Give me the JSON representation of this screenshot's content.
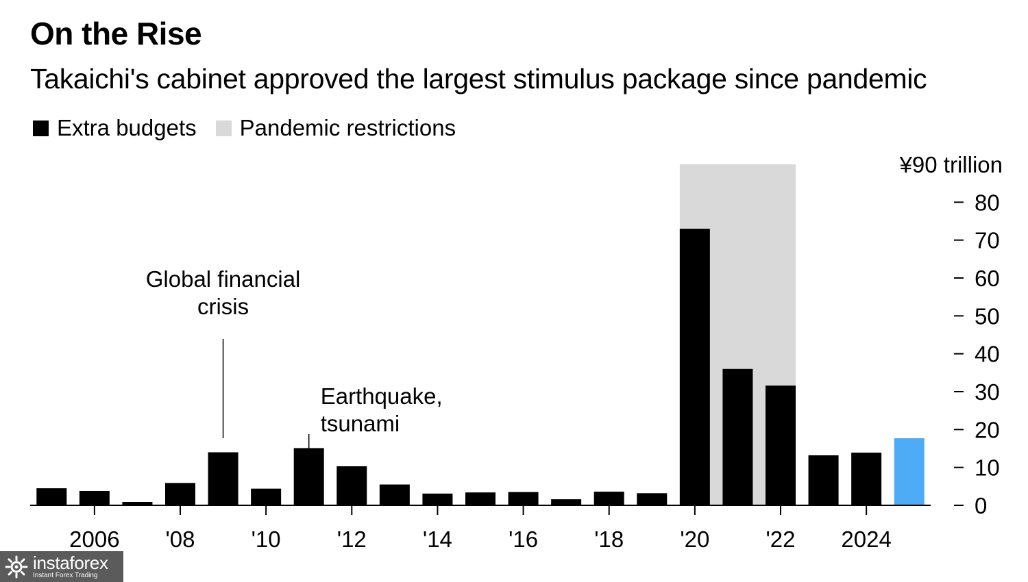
{
  "header": {
    "title": "On the Rise",
    "subtitle": "Takaichi's cabinet approved the largest stimulus package since pandemic"
  },
  "legend": [
    {
      "label": "Extra budgets",
      "color": "#000000"
    },
    {
      "label": "Pandemic restrictions",
      "color": "#d9d9d9"
    }
  ],
  "chart_data": {
    "type": "bar",
    "title": "On the Rise",
    "subtitle": "Takaichi's cabinet approved the largest stimulus package since pandemic",
    "xlabel": "",
    "ylabel": "¥ trillion",
    "ylim": [
      0,
      90
    ],
    "y_ticks": [
      0,
      10,
      20,
      30,
      40,
      50,
      60,
      70,
      80,
      90
    ],
    "y_tick_labels": [
      "0",
      "10",
      "20",
      "30",
      "40",
      "50",
      "60",
      "70",
      "80",
      "¥90 trillion"
    ],
    "categories": [
      "2005",
      "2006",
      "2007",
      "2008",
      "2009",
      "2010",
      "2011",
      "2012",
      "2013",
      "2014",
      "2015",
      "2016",
      "2017",
      "2018",
      "2019",
      "2020",
      "2021",
      "2022",
      "2023",
      "2024",
      "2025"
    ],
    "x_tick_labels": [
      {
        "year": "2006",
        "label": "2006"
      },
      {
        "year": "2008",
        "label": "'08"
      },
      {
        "year": "2010",
        "label": "'10"
      },
      {
        "year": "2012",
        "label": "'12"
      },
      {
        "year": "2014",
        "label": "'14"
      },
      {
        "year": "2016",
        "label": "'16"
      },
      {
        "year": "2018",
        "label": "'18"
      },
      {
        "year": "2020",
        "label": "'20"
      },
      {
        "year": "2022",
        "label": "'22"
      },
      {
        "year": "2024",
        "label": "2024"
      }
    ],
    "series": [
      {
        "name": "Extra budgets",
        "values": [
          4.5,
          3.8,
          0.9,
          5.9,
          14.0,
          4.4,
          15.1,
          10.3,
          5.5,
          3.1,
          3.4,
          3.5,
          1.6,
          3.6,
          3.2,
          73.0,
          36.0,
          31.6,
          13.2,
          13.9,
          17.7
        ],
        "color": "#000000",
        "highlight": {
          "index": 20,
          "color": "#4eacf7"
        }
      }
    ],
    "shaded_region": {
      "label": "Pandemic restrictions",
      "from": "2020",
      "to": "2022",
      "color": "#d9d9d9"
    },
    "annotations": [
      {
        "lines": [
          "Global financial",
          "crisis"
        ],
        "year": "2009"
      },
      {
        "lines": [
          "Earthquake,",
          "tsunami"
        ],
        "year": "2011"
      }
    ],
    "grid": false,
    "legend_position": "top-left"
  },
  "watermark": {
    "brand": "instaforex",
    "tagline": "Instant Forex Trading"
  }
}
